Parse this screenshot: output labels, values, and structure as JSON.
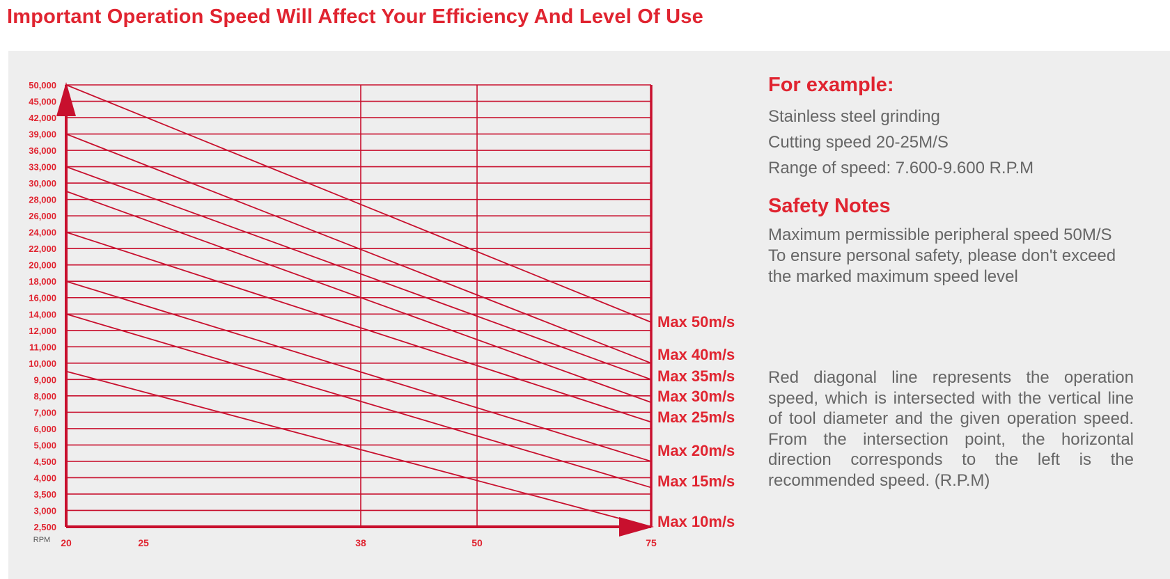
{
  "title": "Important Operation Speed Will Affect Your Efficiency And Level Of Use",
  "colors": {
    "accent": "#e02430",
    "line": "#c8102e",
    "text": "#666666",
    "panel": "#eeeeee"
  },
  "chart_data": {
    "type": "line",
    "title": "",
    "xlabel": "",
    "ylabel": "",
    "x_unit_label": "RPM",
    "x_ticks": [
      20,
      25,
      38,
      50,
      75
    ],
    "x_vertical_gridlines": [
      38,
      50,
      75
    ],
    "y_ticks": [
      "50,000",
      "45,000",
      "42,000",
      "39,000",
      "36,000",
      "33,000",
      "30,000",
      "28,000",
      "26,000",
      "24,000",
      "22,000",
      "20,000",
      "18,000",
      "16,000",
      "14,000",
      "12,000",
      "11,000",
      "10,000",
      "9,000",
      "8,000",
      "7,000",
      "6,000",
      "5,000",
      "4,500",
      "4,000",
      "3,500",
      "3,000",
      "2,500"
    ],
    "grid": true,
    "series": [
      {
        "name": "Max 50m/s",
        "x": [
          20,
          75
        ],
        "y": [
          50000,
          13000
        ]
      },
      {
        "name": "Max 40m/s",
        "x": [
          20,
          75
        ],
        "y": [
          39000,
          10000
        ]
      },
      {
        "name": "Max 35m/s",
        "x": [
          20,
          75
        ],
        "y": [
          33000,
          9000
        ]
      },
      {
        "name": "Max 30m/s",
        "x": [
          20,
          75
        ],
        "y": [
          29000,
          7600
        ]
      },
      {
        "name": "Max 25m/s",
        "x": [
          20,
          75
        ],
        "y": [
          24000,
          6400
        ]
      },
      {
        "name": "Max 20m/s",
        "x": [
          20,
          75
        ],
        "y": [
          18000,
          4500
        ]
      },
      {
        "name": "Max 15m/s",
        "x": [
          20,
          75
        ],
        "y": [
          14000,
          3700
        ]
      },
      {
        "name": "Max 10m/s",
        "x": [
          20,
          75
        ],
        "y": [
          9500,
          2500
        ]
      }
    ]
  },
  "info": {
    "example_heading": "For example:",
    "example_lines": [
      "Stainless steel grinding",
      "Cutting speed 20-25M/S",
      "Range of speed: 7.600-9.600 R.P.M"
    ],
    "safety_heading": "Safety Notes",
    "safety_lines": [
      "Maximum permissible peripheral speed 50M/S",
      "To ensure personal safety, please don't exceed",
      "the marked maximum speed level"
    ],
    "description": "Red diagonal line represents the operation speed, which is intersected with the vertical line of tool diameter and the given operation speed. From the intersection point, the horizontal direction corresponds to the left is the recommended speed. (R.P.M)"
  }
}
